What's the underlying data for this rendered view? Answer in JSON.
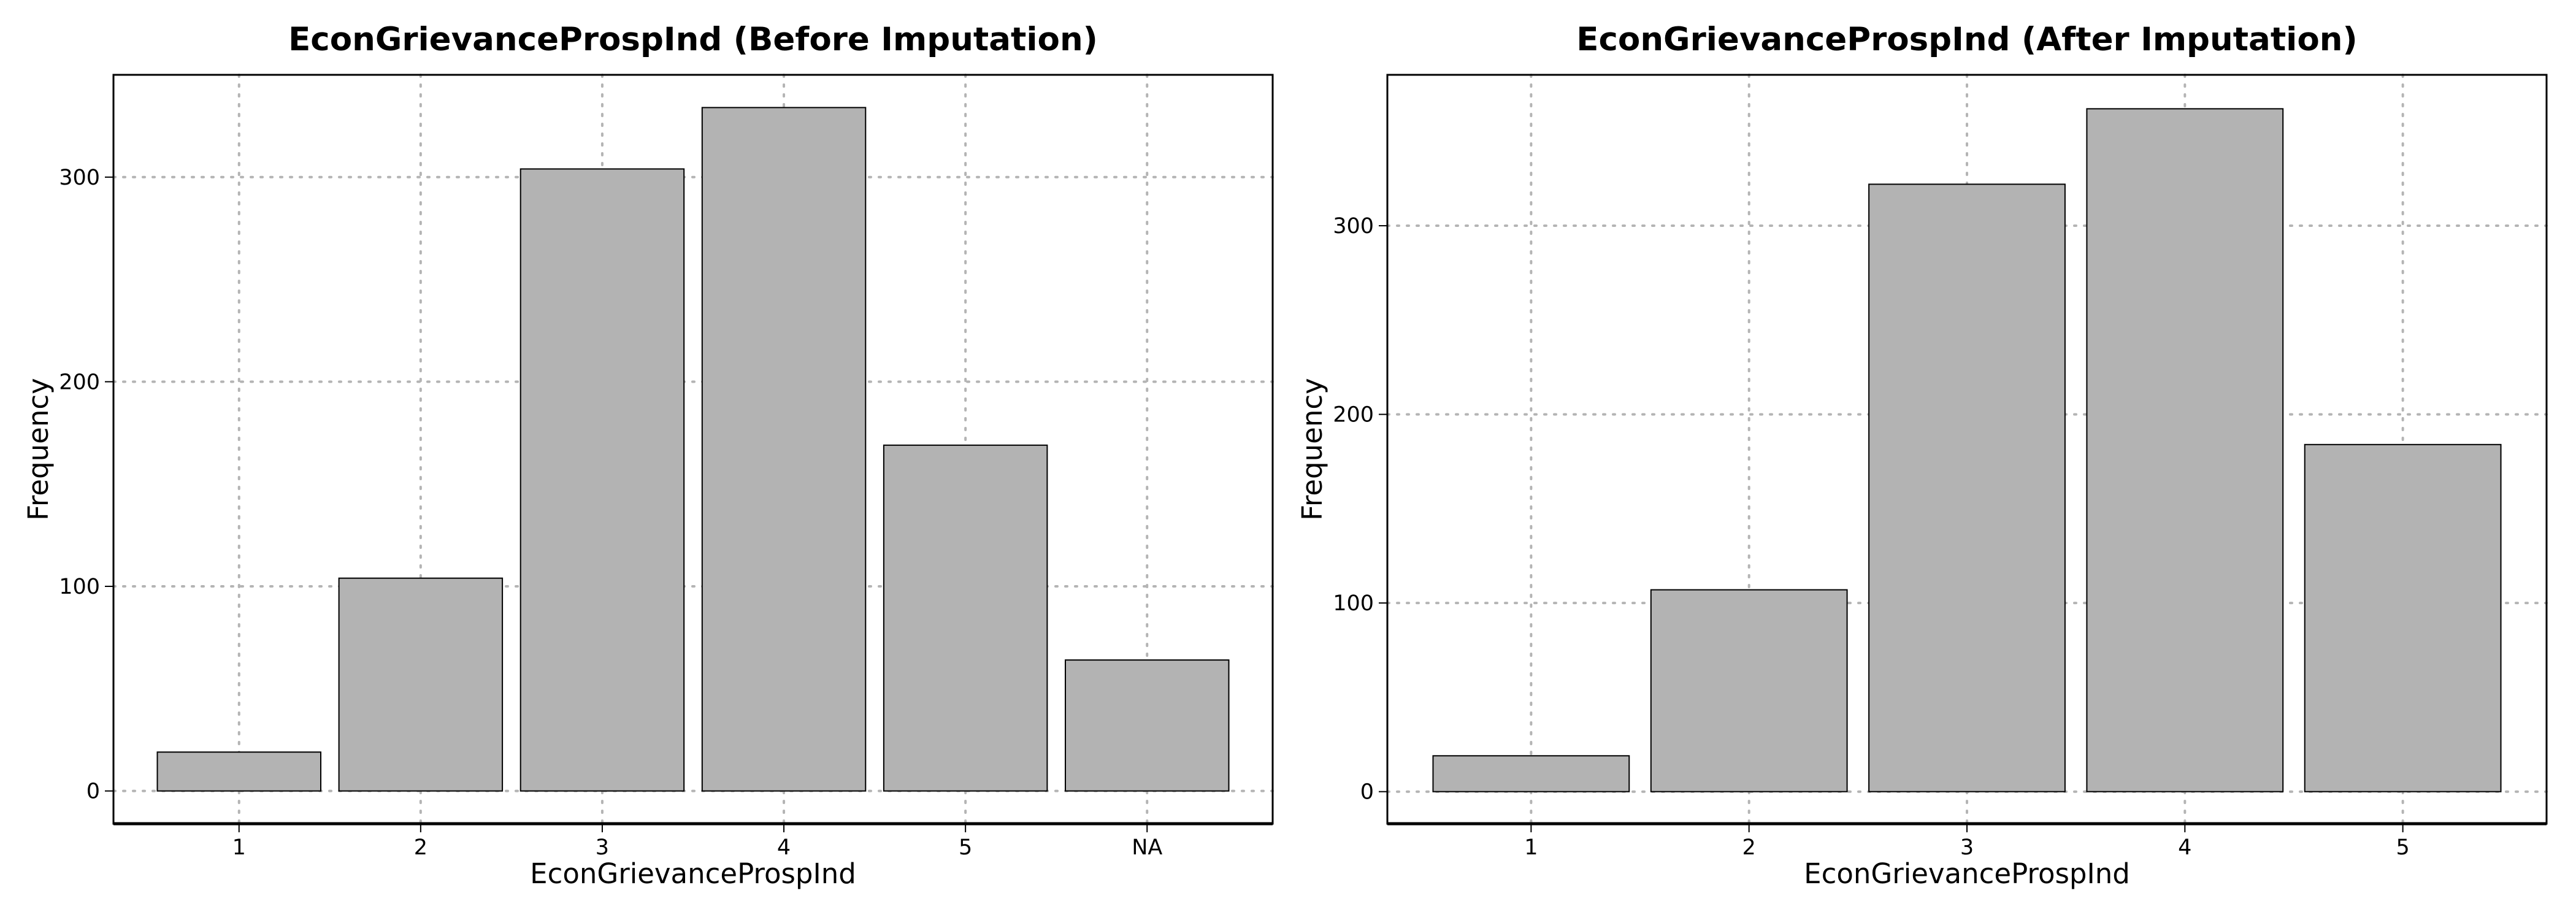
{
  "chart_data": [
    {
      "type": "bar",
      "title": "EconGrievanceProspInd (Before Imputation)",
      "xlabel": "EconGrievanceProspInd",
      "ylabel": "Frequency",
      "categories": [
        "1",
        "2",
        "3",
        "4",
        "5",
        "NA"
      ],
      "values": [
        19,
        104,
        304,
        334,
        169,
        64
      ],
      "ylim": [
        -16,
        350
      ],
      "yticks": [
        0,
        100,
        200,
        300
      ],
      "grid": true,
      "bar_color": "#b3b3b3"
    },
    {
      "type": "bar",
      "title": "EconGrievanceProspInd (After Imputation)",
      "xlabel": "EconGrievanceProspInd",
      "ylabel": "Frequency",
      "categories": [
        "1",
        "2",
        "3",
        "4",
        "5"
      ],
      "values": [
        19,
        107,
        322,
        362,
        184
      ],
      "ylim": [
        -17,
        380
      ],
      "yticks": [
        0,
        100,
        200,
        300
      ],
      "grid": true,
      "bar_color": "#b3b3b3"
    }
  ]
}
